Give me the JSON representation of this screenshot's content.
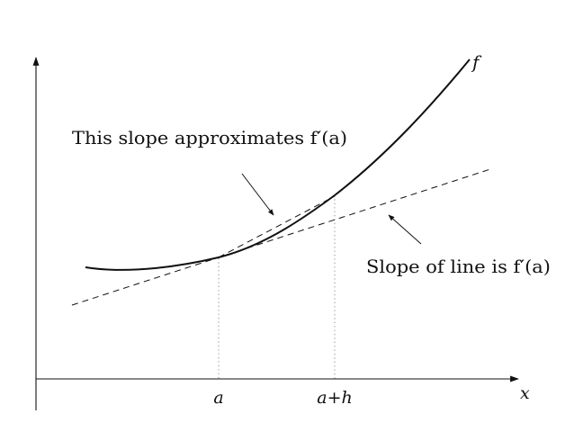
{
  "labels": {
    "curve_name": "f",
    "x_axis": "x",
    "tick_a": "a",
    "tick_a_plus_h": "a+h",
    "secant_note": "This slope approximates f′(a)",
    "tangent_note": "Slope of line is f′(a)"
  },
  "colors": {
    "ink": "#111111",
    "dotted": "#888888",
    "background": "#ffffff"
  }
}
